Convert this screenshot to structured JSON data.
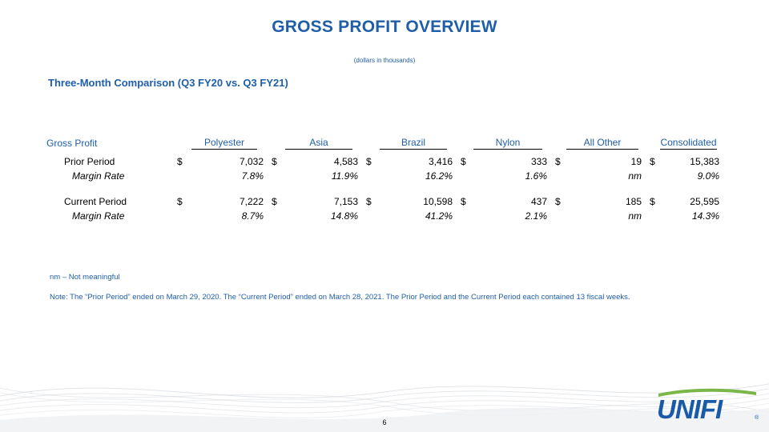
{
  "title": "GROSS PROFIT OVERVIEW",
  "subtitle": "(dollars in thousands)",
  "section_title": "Three-Month Comparison (Q3 FY20 vs. Q3 FY21)",
  "table": {
    "header_label": "Gross Profit",
    "columns": [
      "Polyester",
      "Asia",
      "Brazil",
      "Nylon",
      "All Other",
      "Consolidated"
    ],
    "currency": "$",
    "rows": [
      {
        "label": "Prior Period",
        "values": [
          "7,032",
          "4,583",
          "3,416",
          "333",
          "19",
          "15,383"
        ]
      },
      {
        "label": "Margin Rate",
        "values": [
          "7.8%",
          "11.9%",
          "16.2%",
          "1.6%",
          "nm",
          "9.0%"
        ]
      },
      {
        "label": "Current Period",
        "values": [
          "7,222",
          "7,153",
          "10,598",
          "437",
          "185",
          "25,595"
        ]
      },
      {
        "label": "Margin Rate",
        "values": [
          "8.7%",
          "14.8%",
          "41.2%",
          "2.1%",
          "nm",
          "14.3%"
        ]
      }
    ]
  },
  "notes": {
    "nm": "nm – Not meaningful",
    "period": "Note: The “Prior Period” ended on March 29, 2020. The “Current Period” ended on March 28, 2021.  The Prior Period and the Current Period each contained 13 fiscal weeks."
  },
  "footer": {
    "page_number": "6",
    "logo_text": "UNIFI",
    "logo_mark": "®"
  },
  "colors": {
    "accent": "#1f5ea8",
    "logo_green": "#7ab648",
    "logo_blue": "#1a5aa6"
  }
}
